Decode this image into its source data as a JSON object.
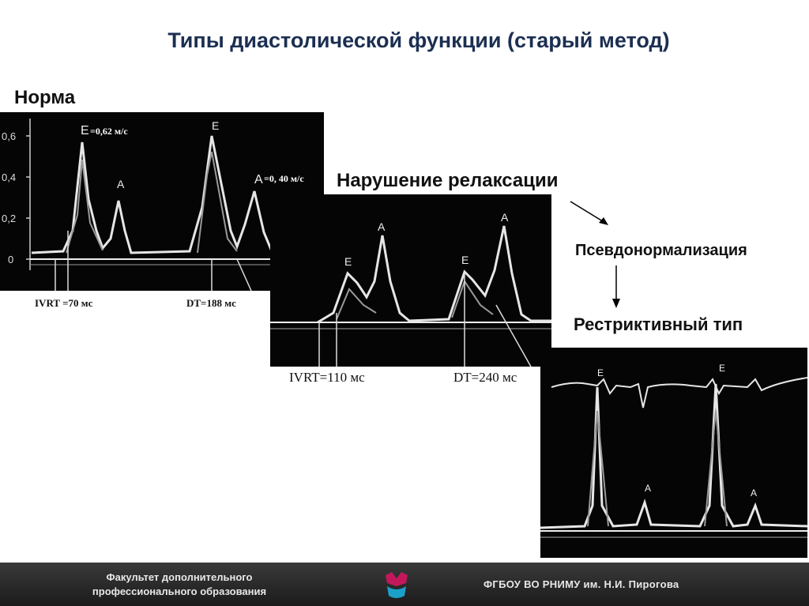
{
  "title": "Типы диастолической функции (старый метод)",
  "labels": {
    "norm": "Норма",
    "relaxation": "Нарушение релаксации",
    "pseudo": "Псевдонормализация",
    "restrictive": "Рестриктивный тип"
  },
  "panel_norm": {
    "y_ticks": [
      "0,6",
      "0,4",
      "0,2",
      "0"
    ],
    "peak_e": "E",
    "peak_a": "A",
    "e_value": "=0,62 м/с",
    "a_value": "=0, 40 м/с",
    "ivrt": "IVRT =70 мс",
    "dt": "DT=188 мс"
  },
  "panel_relax": {
    "peak_e": "E",
    "peak_a": "A",
    "ivrt": "IVRT=110 мс",
    "dt": "DT=240 мс"
  },
  "panel_restrict": {
    "peak_e": "E",
    "peak_a": "A"
  },
  "footer": {
    "left_line1": "Факультет дополнительного",
    "left_line2": "профессионального образования",
    "right": "ФГБОУ ВО РНИМУ им. Н.И. Пирогова"
  }
}
